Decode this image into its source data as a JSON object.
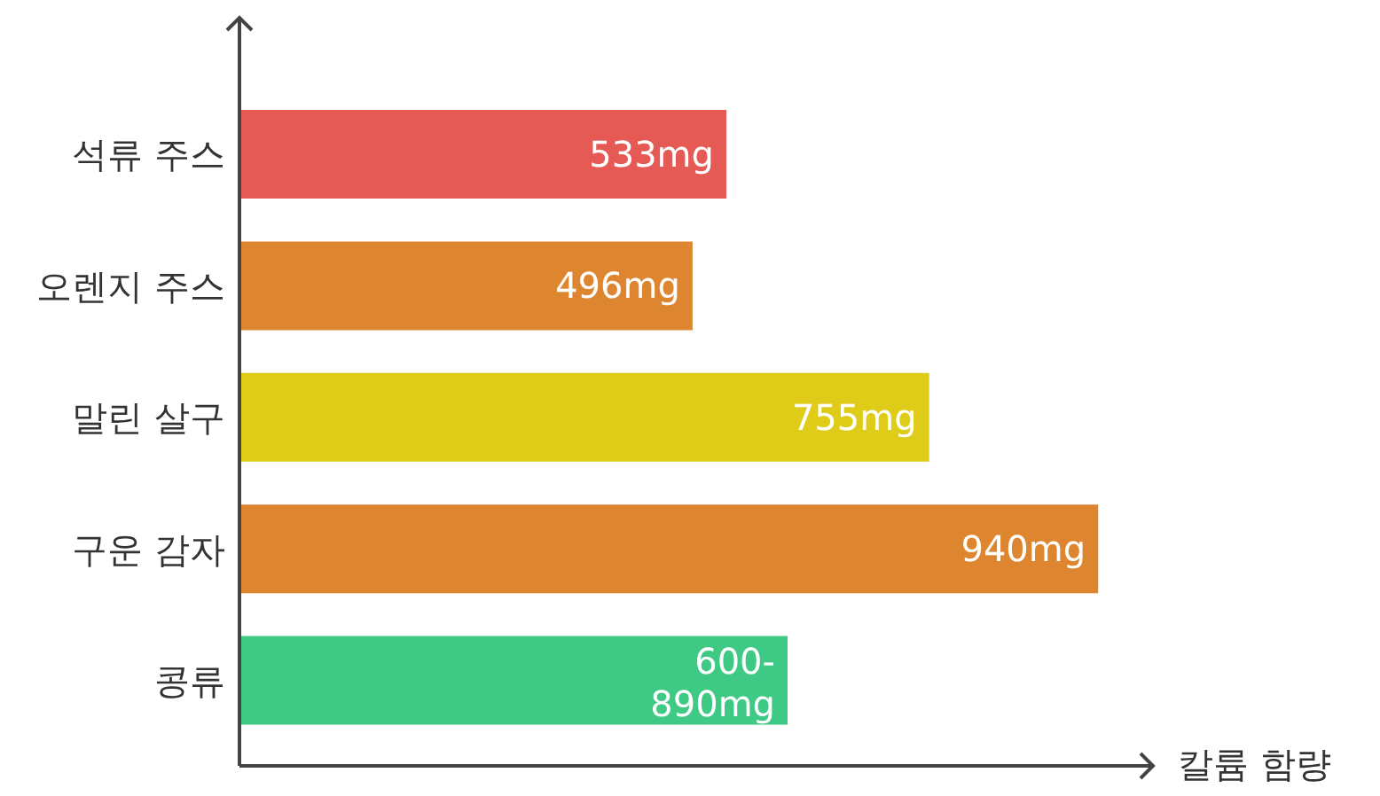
{
  "chart_data": {
    "type": "bar",
    "orientation": "horizontal",
    "categories": [
      "석류 주스",
      "오렌지 주스",
      "말린 살구",
      "구운 감자",
      "콩류"
    ],
    "values": [
      533,
      496,
      755,
      940,
      600
    ],
    "value_labels": [
      "533mg",
      "496mg",
      "755mg",
      "940mg",
      "600-890mg"
    ],
    "colors": [
      "#e55a55",
      "#de8530",
      "#dfcc18",
      "#de8530",
      "#3ec985"
    ],
    "xlim": [
      0,
      1000
    ],
    "xlabel": "칼륨 함량",
    "tick_labels": "y",
    "grid": false,
    "legend": false
  }
}
